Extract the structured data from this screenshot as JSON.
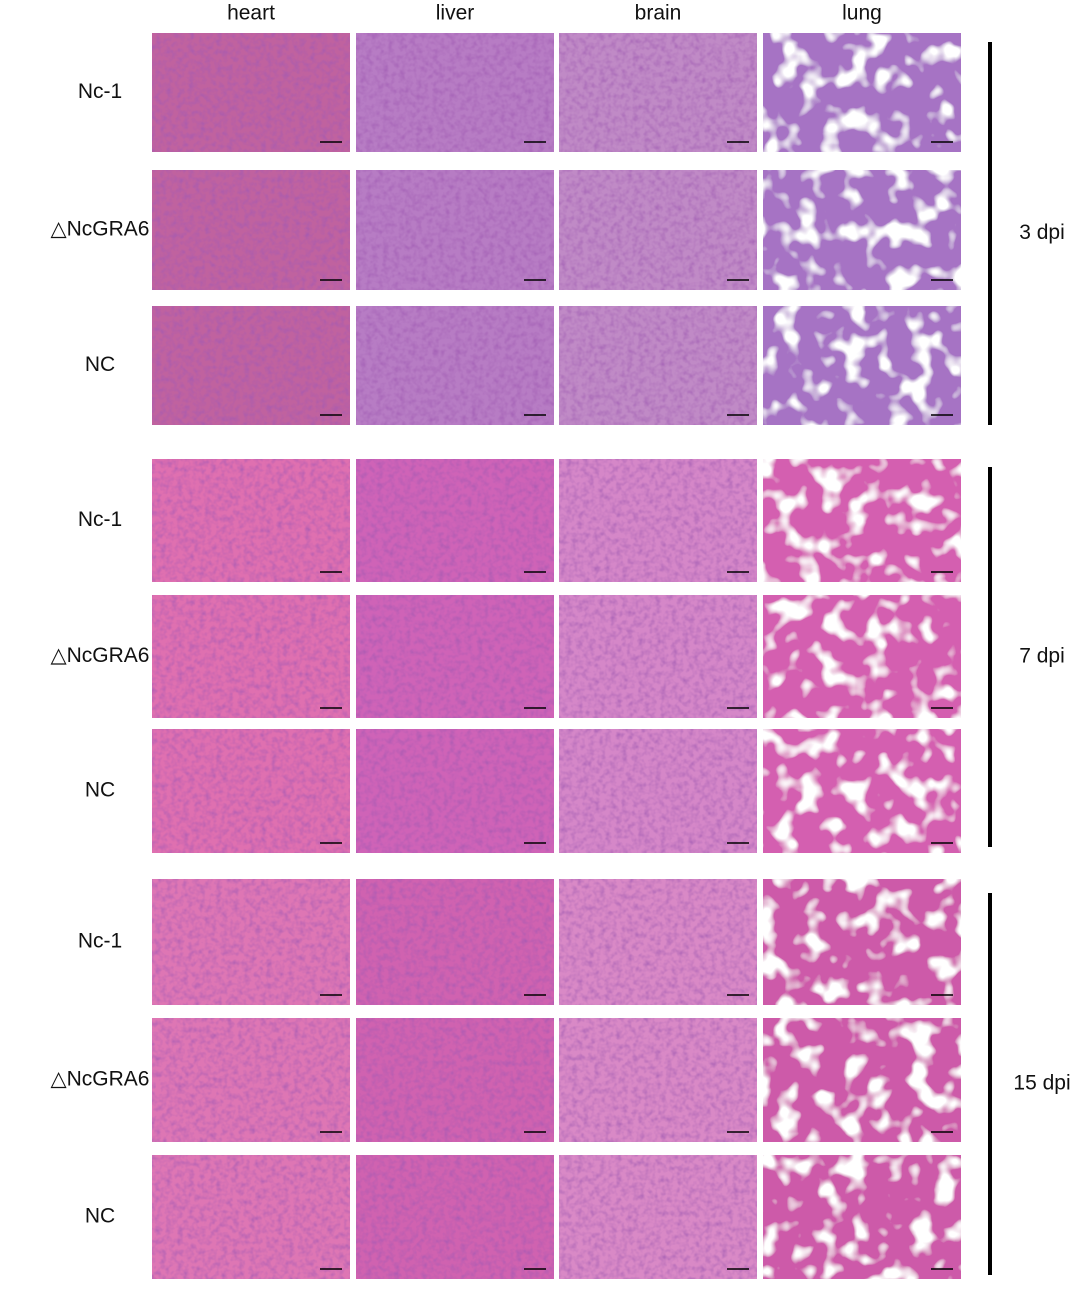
{
  "columns": [
    "heart",
    "liver",
    "brain",
    "lung"
  ],
  "groups": [
    {
      "label": "3 dpi",
      "rows": [
        "Nc-1",
        "△NcGRA6",
        "NC"
      ]
    },
    {
      "label": "7 dpi",
      "rows": [
        "Nc-1",
        "△NcGRA6",
        "NC"
      ]
    },
    {
      "label": "15 dpi",
      "rows": [
        "Nc-1",
        "△NcGRA6",
        "NC"
      ]
    }
  ]
}
